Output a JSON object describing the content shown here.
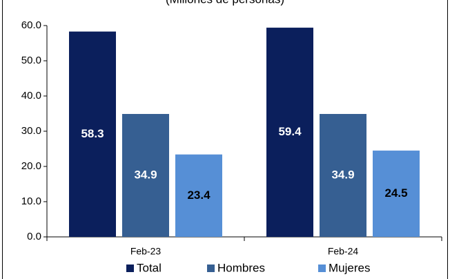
{
  "chart_data": {
    "type": "bar",
    "subtitle": "(Millones de personas)",
    "categories": [
      "Feb-23",
      "Feb-24"
    ],
    "series": [
      {
        "name": "Total",
        "color": "#0b1f5c",
        "values": [
          58.3,
          59.4
        ]
      },
      {
        "name": "Hombres",
        "color": "#365f92",
        "values": [
          34.9,
          34.9
        ]
      },
      {
        "name": "Mujeres",
        "color": "#568fd6",
        "values": [
          23.4,
          24.5
        ]
      }
    ],
    "ylim": [
      0,
      60
    ],
    "yticks": [
      {
        "value": 0,
        "label": "0.0"
      },
      {
        "value": 10,
        "label": "10.0"
      },
      {
        "value": 20,
        "label": "20.0"
      },
      {
        "value": 30,
        "label": "30.0"
      },
      {
        "value": 40,
        "label": "40.0"
      },
      {
        "value": 50,
        "label": "50.0"
      },
      {
        "value": 60,
        "label": "60.0"
      }
    ],
    "grid": false,
    "legend": "bottom"
  }
}
